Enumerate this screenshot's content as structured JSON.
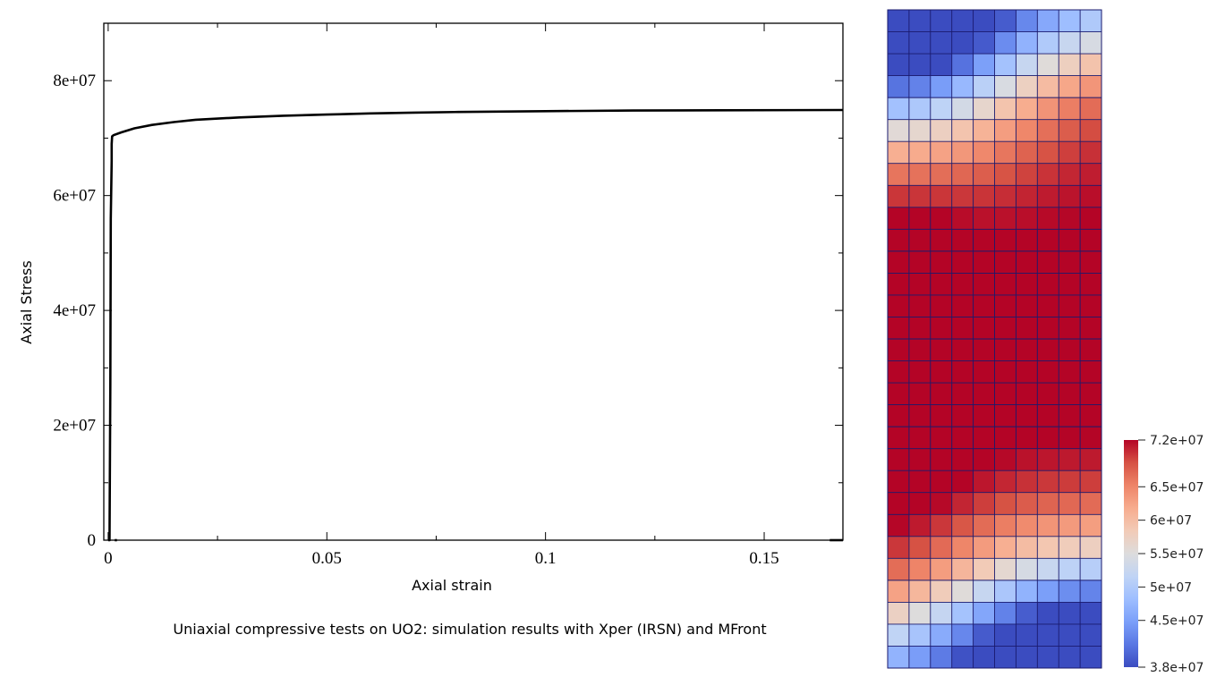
{
  "caption": "Uniaxial compressive tests on UO2: simulation results with Xper (IRSN) and MFront",
  "chart_data": [
    {
      "type": "line",
      "title": "",
      "xlabel": "Axial strain",
      "ylabel": "Axial Stress",
      "xlim": [
        -0.001,
        0.168
      ],
      "ylim": [
        0,
        90000000
      ],
      "xticks": [
        0,
        0.05,
        0.1,
        0.15
      ],
      "xtick_labels": [
        "0",
        "0.05",
        "0.1",
        "0.15"
      ],
      "yticks": [
        0,
        20000000,
        40000000,
        60000000,
        80000000
      ],
      "ytick_labels": [
        "0",
        "2e+07",
        "4e+07",
        "6e+07",
        "8e+07"
      ],
      "grid": false,
      "series": [
        {
          "color": "#000000",
          "x": [
            0,
            0,
            0.0003,
            0.0005,
            0.0006,
            0.0008,
            0.0008,
            0.0009,
            0.0012,
            0.003,
            0.006,
            0.01,
            0.015,
            0.02,
            0.03,
            0.04,
            0.05,
            0.06,
            0.07,
            0.08,
            0.1,
            0.12,
            0.14,
            0.168
          ],
          "y": [
            0,
            0,
            0,
            27000000,
            56000000,
            66000000,
            69000000,
            70300000,
            70500000,
            71000000,
            71700000,
            72300000,
            72800000,
            73200000,
            73600000,
            73900000,
            74100000,
            74300000,
            74450000,
            74550000,
            74700000,
            74800000,
            74850000,
            74900000
          ]
        },
        {
          "color": "#000000",
          "x": [
            0.0015,
            0.002
          ],
          "y": [
            0,
            0
          ]
        },
        {
          "color": "#000000",
          "x": [
            0.165,
            0.168
          ],
          "y": [
            0,
            0
          ]
        }
      ]
    },
    {
      "type": "heatmap",
      "title": "",
      "rows": 30,
      "cols": 10,
      "value_range": [
        38000000,
        72000000
      ],
      "colormap": "Cool to Warm",
      "colorbar": {
        "ticks": [
          72000000,
          65000000,
          60000000,
          55000000,
          50000000,
          45000000,
          38000000
        ],
        "tick_labels": [
          "7.2e+07",
          "6.5e+07",
          "6e+07",
          "5.5e+07",
          "5e+07",
          "4.5e+07",
          "3.8e+07"
        ],
        "colors": [
          "#3b4cc0",
          "#5977e3",
          "#7b9ff9",
          "#9ebeff",
          "#c0d4f5",
          "#dddcdc",
          "#f2cbb7",
          "#f7ac8e",
          "#ee8468",
          "#d65244",
          "#b40426"
        ]
      }
    }
  ]
}
